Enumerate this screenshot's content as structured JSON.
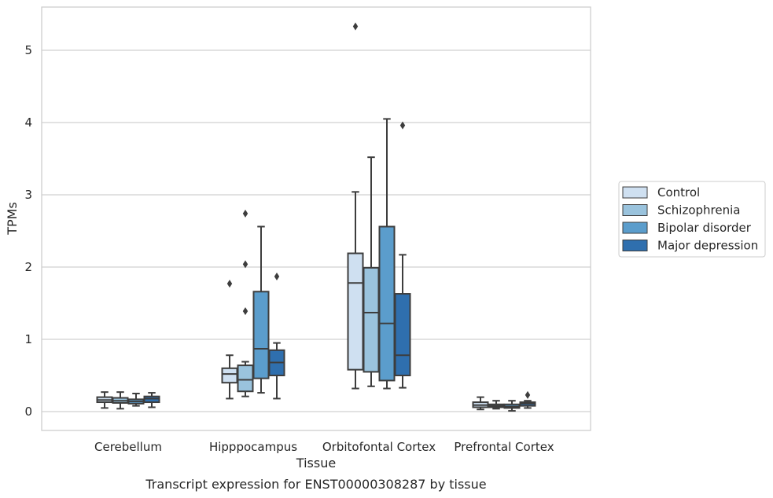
{
  "chart_data": {
    "type": "box",
    "title": "Transcript expression for ENST00000308287 by tissue",
    "xlabel": "Tissue",
    "ylabel": "TPMs",
    "ylim": [
      -0.25,
      5.6
    ],
    "yticks": [
      0,
      1,
      2,
      3,
      4,
      5
    ],
    "grid": "horizontal",
    "legend_placement": "right",
    "categories": [
      "Cerebellum",
      "Hipppocampus",
      "Orbitofontal Cortex",
      "Prefrontal Cortex"
    ],
    "series": [
      {
        "name": "Control",
        "color": "#cfe0f1",
        "boxes": [
          {
            "low": 0.05,
            "q1": 0.13,
            "median": 0.16,
            "q3": 0.2,
            "high": 0.27,
            "outliers": []
          },
          {
            "low": 0.18,
            "q1": 0.4,
            "median": 0.52,
            "q3": 0.6,
            "high": 0.78,
            "outliers": [
              1.77
            ]
          },
          {
            "low": 0.32,
            "q1": 0.58,
            "median": 1.78,
            "q3": 2.19,
            "high": 3.04,
            "outliers": [
              5.33
            ]
          },
          {
            "low": 0.03,
            "q1": 0.06,
            "median": 0.09,
            "q3": 0.13,
            "high": 0.2,
            "outliers": []
          }
        ]
      },
      {
        "name": "Schizophrenia",
        "color": "#9ac3dd",
        "boxes": [
          {
            "low": 0.04,
            "q1": 0.12,
            "median": 0.15,
            "q3": 0.19,
            "high": 0.27,
            "outliers": []
          },
          {
            "low": 0.21,
            "q1": 0.28,
            "median": 0.44,
            "q3": 0.64,
            "high": 0.69,
            "outliers": [
              1.39,
              2.04,
              2.74
            ]
          },
          {
            "low": 0.35,
            "q1": 0.55,
            "median": 1.37,
            "q3": 1.99,
            "high": 3.52,
            "outliers": []
          },
          {
            "low": 0.04,
            "q1": 0.06,
            "median": 0.08,
            "q3": 0.1,
            "high": 0.15,
            "outliers": []
          }
        ]
      },
      {
        "name": "Bipolar disorder",
        "color": "#5b9dcc",
        "boxes": [
          {
            "low": 0.08,
            "q1": 0.11,
            "median": 0.14,
            "q3": 0.17,
            "high": 0.25,
            "outliers": []
          },
          {
            "low": 0.26,
            "q1": 0.46,
            "median": 0.87,
            "q3": 1.66,
            "high": 2.56,
            "outliers": []
          },
          {
            "low": 0.32,
            "q1": 0.43,
            "median": 1.22,
            "q3": 2.56,
            "high": 4.05,
            "outliers": []
          },
          {
            "low": 0.01,
            "q1": 0.05,
            "median": 0.07,
            "q3": 0.1,
            "high": 0.15,
            "outliers": []
          }
        ]
      },
      {
        "name": "Major depression",
        "color": "#2f6fae",
        "boxes": [
          {
            "low": 0.06,
            "q1": 0.13,
            "median": 0.18,
            "q3": 0.21,
            "high": 0.26,
            "outliers": []
          },
          {
            "low": 0.18,
            "q1": 0.5,
            "median": 0.68,
            "q3": 0.85,
            "high": 0.95,
            "outliers": [
              1.87
            ]
          },
          {
            "low": 0.33,
            "q1": 0.5,
            "median": 0.78,
            "q3": 1.63,
            "high": 2.17,
            "outliers": [
              3.96
            ]
          },
          {
            "low": 0.05,
            "q1": 0.08,
            "median": 0.11,
            "q3": 0.13,
            "high": 0.15,
            "outliers": [
              0.23
            ]
          }
        ]
      }
    ]
  }
}
